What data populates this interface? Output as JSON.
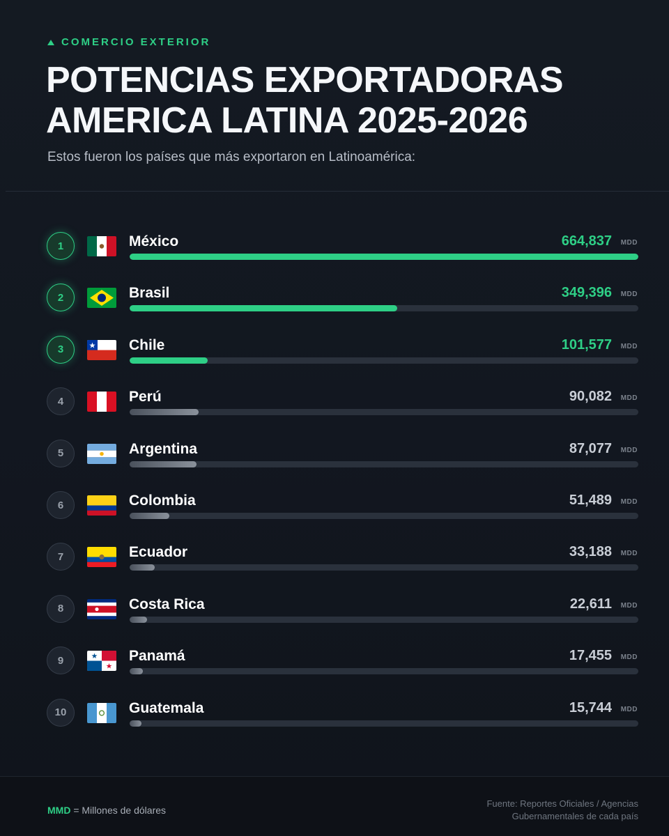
{
  "header": {
    "kicker": "COMERCIO EXTERIOR",
    "title_line1": "POTENCIAS EXPORTADORAS",
    "title_line2": "AMERICA LATINA 2025-2026",
    "subtitle": "Estos fueron los países que más exportaron en Latinoamérica:"
  },
  "colors": {
    "accent": "#2ecf86",
    "background": "#131820",
    "track": "#2a313c"
  },
  "chart_data": {
    "type": "bar",
    "orientation": "horizontal",
    "title": "POTENCIAS EXPORTADORAS AMERICA LATINA 2025-2026",
    "unit": "MDD",
    "xlim": [
      0,
      664837
    ],
    "categories": [
      "México",
      "Brasil",
      "Chile",
      "Perú",
      "Argentina",
      "Colombia",
      "Ecuador",
      "Costa Rica",
      "Panamá",
      "Guatemala"
    ],
    "values": [
      664837,
      349396,
      101577,
      90082,
      87077,
      51489,
      33188,
      22611,
      17455,
      15744
    ],
    "items": [
      {
        "rank": "1",
        "country": "México",
        "value": 664837,
        "value_label": "664,837",
        "flag": "mexico-flag-icon",
        "highlight": true
      },
      {
        "rank": "2",
        "country": "Brasil",
        "value": 349396,
        "value_label": "349,396",
        "flag": "brazil-flag-icon",
        "highlight": true
      },
      {
        "rank": "3",
        "country": "Chile",
        "value": 101577,
        "value_label": "101,577",
        "flag": "chile-flag-icon",
        "highlight": true
      },
      {
        "rank": "4",
        "country": "Perú",
        "value": 90082,
        "value_label": "90,082",
        "flag": "peru-flag-icon",
        "highlight": false
      },
      {
        "rank": "5",
        "country": "Argentina",
        "value": 87077,
        "value_label": "87,077",
        "flag": "argentina-flag-icon",
        "highlight": false
      },
      {
        "rank": "6",
        "country": "Colombia",
        "value": 51489,
        "value_label": "51,489",
        "flag": "colombia-flag-icon",
        "highlight": false
      },
      {
        "rank": "7",
        "country": "Ecuador",
        "value": 33188,
        "value_label": "33,188",
        "flag": "ecuador-flag-icon",
        "highlight": false
      },
      {
        "rank": "8",
        "country": "Costa Rica",
        "value": 22611,
        "value_label": "22,611",
        "flag": "costa-rica-flag-icon",
        "highlight": false
      },
      {
        "rank": "9",
        "country": "Panamá",
        "value": 17455,
        "value_label": "17,455",
        "flag": "panama-flag-icon",
        "highlight": false
      },
      {
        "rank": "10",
        "country": "Guatemala",
        "value": 15744,
        "value_label": "15,744",
        "flag": "guatemala-flag-icon",
        "highlight": false
      }
    ]
  },
  "footer": {
    "legend_abbr": "MMD",
    "legend_text": " = Millones de dólares",
    "source_line1": "Fuente: Reportes Oficiales / Agencias",
    "source_line2": "Gubernamentales de cada país"
  }
}
